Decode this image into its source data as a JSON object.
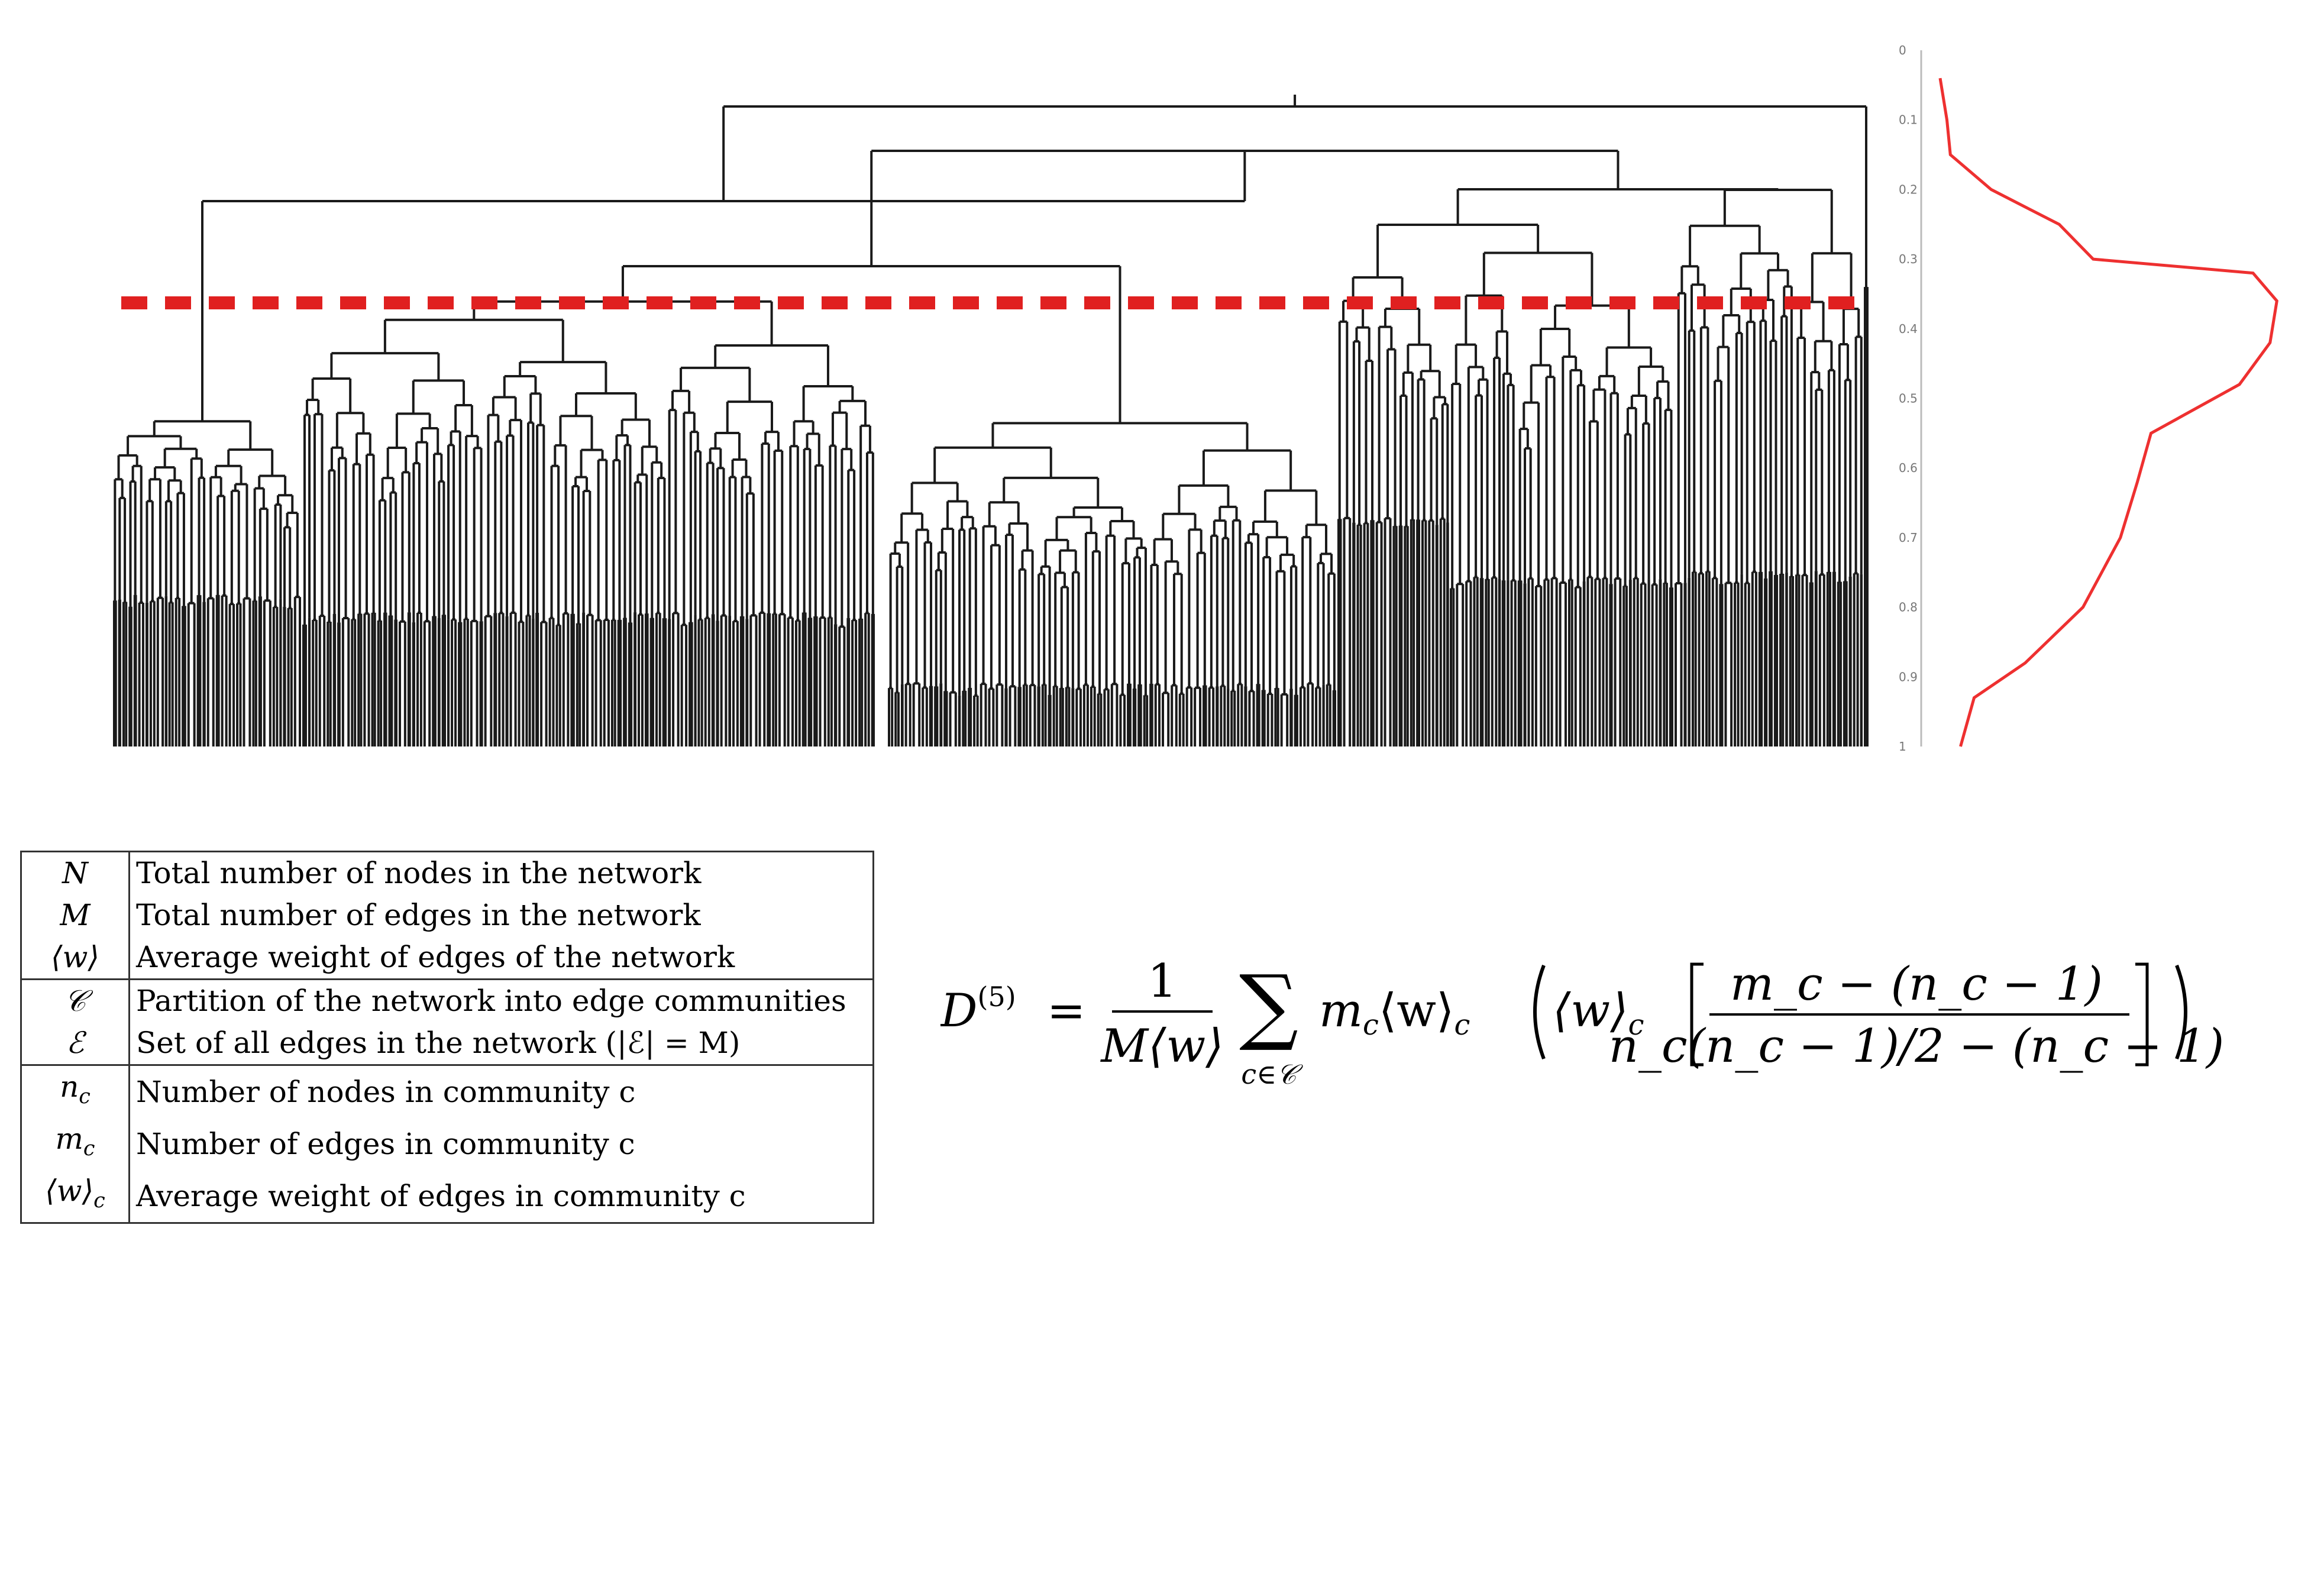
{
  "dendrogram": {
    "density_axis_ticks": [
      "0",
      "0.1",
      "0.2",
      "0.3",
      "0.4",
      "0.5",
      "0.6",
      "0.7",
      "0.8",
      "0.9",
      "1"
    ],
    "cut_line_color": "#e02020",
    "curve_color": "#ee3030",
    "tree_color": "#1a1a1a",
    "density_profile": [
      [
        0.04,
        0.0
      ],
      [
        0.1,
        0.02
      ],
      [
        0.15,
        0.03
      ],
      [
        0.2,
        0.15
      ],
      [
        0.25,
        0.35
      ],
      [
        0.3,
        0.45
      ],
      [
        0.32,
        0.92
      ],
      [
        0.36,
        0.99
      ],
      [
        0.42,
        0.97
      ],
      [
        0.48,
        0.88
      ],
      [
        0.55,
        0.62
      ],
      [
        0.62,
        0.58
      ],
      [
        0.7,
        0.53
      ],
      [
        0.8,
        0.42
      ],
      [
        0.88,
        0.25
      ],
      [
        0.93,
        0.1
      ],
      [
        1.0,
        0.06
      ]
    ]
  },
  "notation": {
    "groups": [
      [
        {
          "symbol": "N",
          "description": "Total number of nodes in the network"
        },
        {
          "symbol": "M",
          "description": "Total number of edges in the network"
        },
        {
          "symbol": "⟨w⟩",
          "description": "Average weight of edges of the network"
        }
      ],
      [
        {
          "symbol": "𝒞",
          "description": "Partition of the network into edge communities"
        },
        {
          "symbol": "ℰ",
          "description": "Set of all edges in the network (|ℰ| = M)"
        }
      ],
      [
        {
          "symbol": "n_c",
          "description": "Number of nodes in community c"
        },
        {
          "symbol": "m_c",
          "description": "Number of edges in community c"
        },
        {
          "symbol": "⟨w⟩_c",
          "description": "Average weight of edges in community c"
        }
      ]
    ]
  },
  "formula": {
    "lhs": "D",
    "lhs_sup": "(5)",
    "equals": "=",
    "prefactor_num": "1",
    "prefactor_den": "M⟨w⟩",
    "sum_symbol": "∑",
    "sum_sub": "c∈𝒞",
    "term": "m",
    "term_sub": "c",
    "avgw": "⟨w⟩",
    "avgw_sub": "c",
    "frac_num": "m_c − (n_c − 1)",
    "frac_den": "n_c(n_c − 1)/2 − (n_c − 1)"
  }
}
